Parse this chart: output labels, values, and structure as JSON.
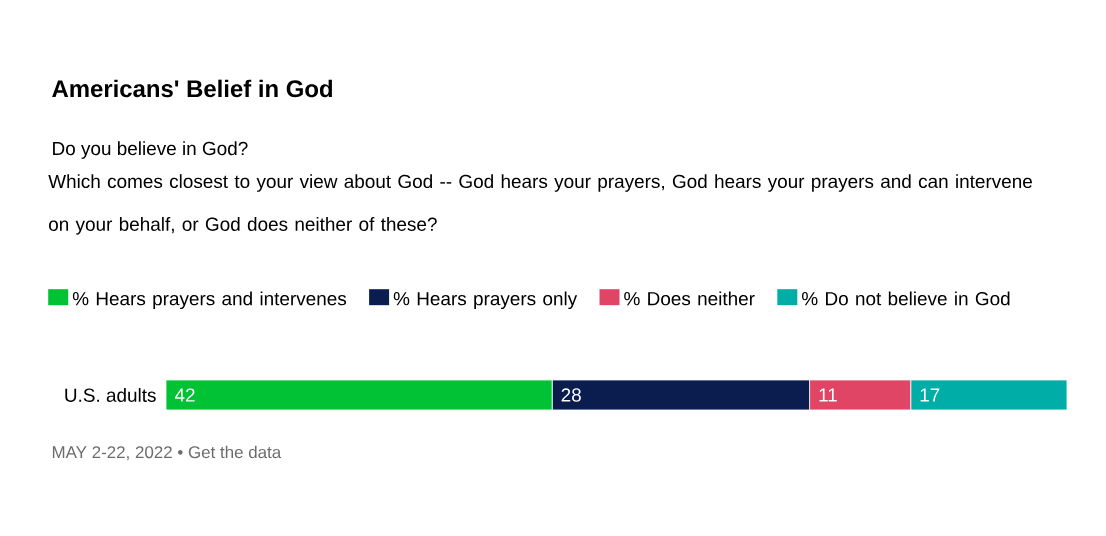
{
  "chart_data": {
    "type": "bar",
    "orientation": "horizontal",
    "stacked": true,
    "title": "Americans' Belief in God",
    "subtitle": "Do you believe in God?",
    "annotations": [
      "Which comes closest to your view about God -- God hears your prayers, God hears your prayers and can intervene on your behalf, or God does neither of these?",
      "MAY 2-22, 2022 • Get the data"
    ],
    "categories": [
      "U.S. adults"
    ],
    "series": [
      {
        "name": "% Hears prayers and intervenes",
        "color": "#00c234",
        "values": [
          42
        ]
      },
      {
        "name": "% Hears prayers only",
        "color": "#0b1d4e",
        "values": [
          28
        ]
      },
      {
        "name": "% Does neither",
        "color": "#e04565",
        "values": [
          11
        ]
      },
      {
        "name": "% Do not believe in God",
        "color": "#00aea7",
        "values": [
          17
        ]
      }
    ],
    "data_labels": true,
    "legend": "top",
    "tick_labels": "y"
  }
}
